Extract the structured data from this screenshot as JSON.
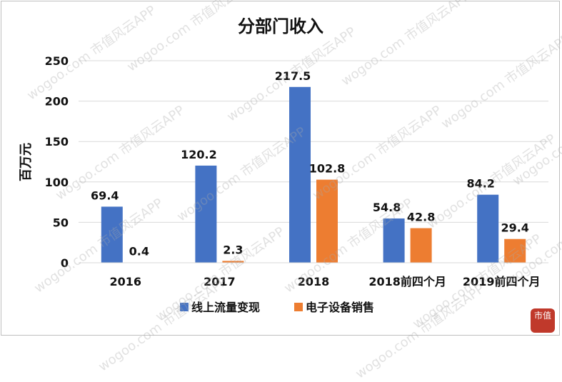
{
  "chart_data": {
    "type": "bar",
    "title": "分部门收入",
    "xlabel": "",
    "ylabel": "百万元",
    "ylim": [
      0,
      250
    ],
    "yticks": [
      0,
      50,
      100,
      150,
      200,
      250
    ],
    "categories": [
      "2016",
      "2017",
      "2018",
      "2018前四个月",
      "2019前四个月"
    ],
    "series": [
      {
        "name": "线上流量变现",
        "color": "#4472C4",
        "values": [
          69.4,
          120.2,
          217.5,
          54.8,
          84.2
        ]
      },
      {
        "name": "电子设备销售",
        "color": "#ED7D31",
        "values": [
          0.4,
          2.3,
          102.8,
          42.8,
          29.4
        ]
      }
    ],
    "data_labels": [
      [
        "69.4",
        "120.2",
        "217.5",
        "54.8",
        "84.2"
      ],
      [
        "0.4",
        "2.3",
        "102.8",
        "42.8",
        "29.4"
      ]
    ],
    "grid": true,
    "legend_position": "bottom"
  },
  "watermark": "wogoo.com 市值风云APP",
  "seal_text": "市值"
}
